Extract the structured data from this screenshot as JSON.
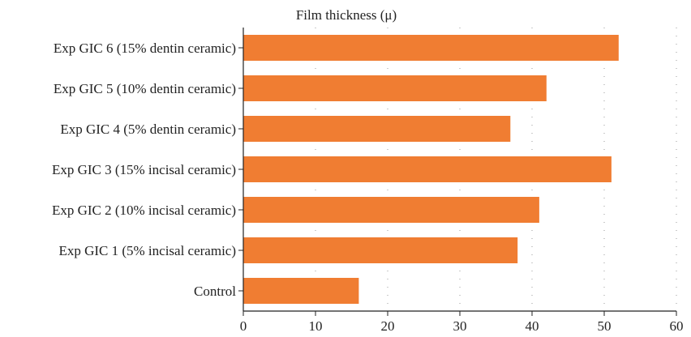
{
  "chart_data": {
    "type": "bar",
    "orientation": "horizontal",
    "title": "Film thickness (μ)",
    "categories": [
      "Exp GIC 6 (15% dentin ceramic)",
      "Exp GIC 5 (10% dentin ceramic)",
      "Exp GIC 4 (5% dentin ceramic)",
      "Exp GIC 3 (15% incisal ceramic)",
      "Exp GIC 2 (10% incisal ceramic)",
      "Exp GIC 1 (5% incisal ceramic)",
      "Control"
    ],
    "values": [
      52,
      42,
      37,
      51,
      41,
      38,
      16
    ],
    "xlim": [
      0,
      60
    ],
    "xticks": [
      "0",
      "10",
      "20",
      "30",
      "40",
      "50",
      "60"
    ],
    "grid": "vertical dotted",
    "bar_color": "#f07d32",
    "axis_color": "#222222",
    "grid_color": "#9a9a9a"
  }
}
